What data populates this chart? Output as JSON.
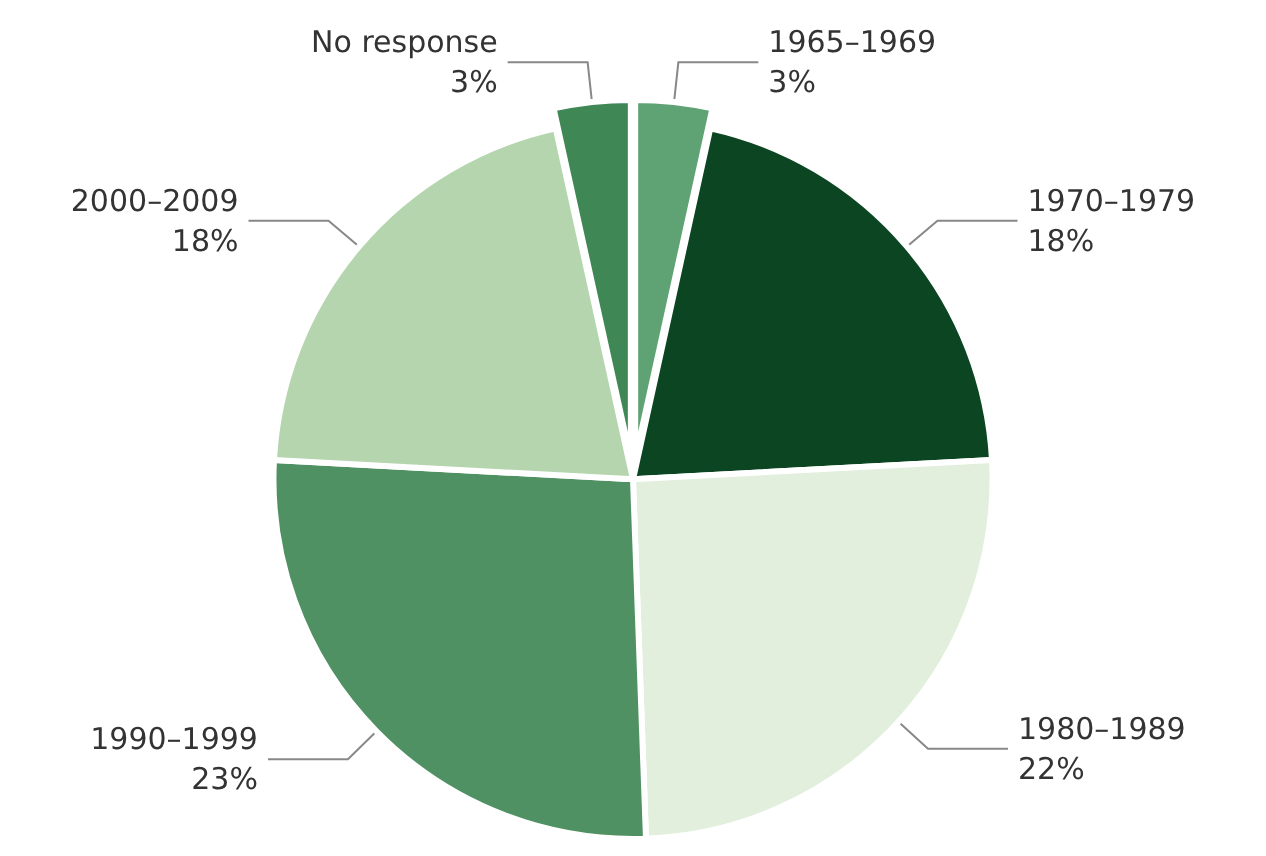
{
  "chart_data": {
    "type": "pie",
    "categories": [
      "1965–1969",
      "1970–1979",
      "1980–1989",
      "1990–1999",
      "2000–2009",
      "No response"
    ],
    "values": [
      3,
      18,
      22,
      23,
      18,
      3
    ],
    "value_labels": [
      "3%",
      "18%",
      "22%",
      "23%",
      "18%",
      "3%"
    ],
    "colors": [
      "#5fa274",
      "#0b4522",
      "#e2efdc",
      "#4f9163",
      "#b4d5ae",
      "#3f8755"
    ],
    "legend": false
  }
}
